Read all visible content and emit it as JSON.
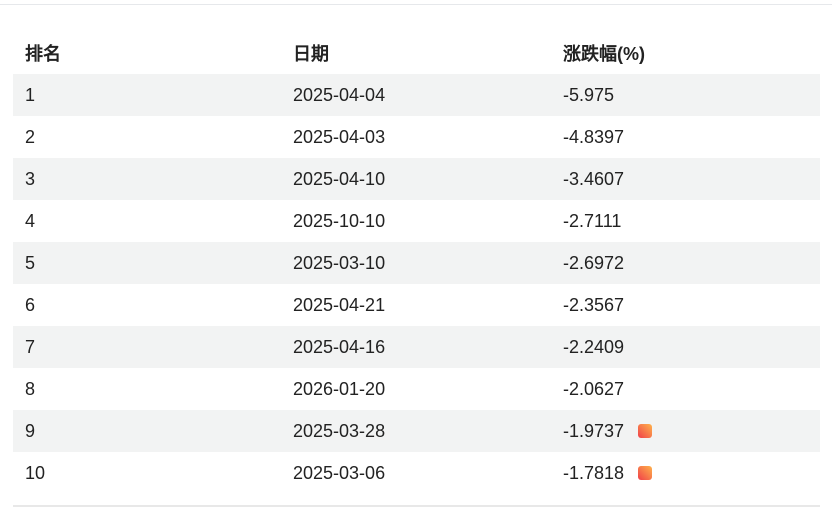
{
  "table": {
    "headers": [
      "排名",
      "日期",
      "涨跌幅(%)"
    ],
    "rows": [
      {
        "rank": "1",
        "date": "2025-04-04",
        "change": "-5.975",
        "icon": false
      },
      {
        "rank": "2",
        "date": "2025-04-03",
        "change": "-4.8397",
        "icon": false
      },
      {
        "rank": "3",
        "date": "2025-04-10",
        "change": "-3.4607",
        "icon": false
      },
      {
        "rank": "4",
        "date": "2025-10-10",
        "change": "-2.7111",
        "icon": false
      },
      {
        "rank": "5",
        "date": "2025-03-10",
        "change": "-2.6972",
        "icon": false
      },
      {
        "rank": "6",
        "date": "2025-04-21",
        "change": "-2.3567",
        "icon": false
      },
      {
        "rank": "7",
        "date": "2025-04-16",
        "change": "-2.2409",
        "icon": false
      },
      {
        "rank": "8",
        "date": "2026-01-20",
        "change": "-2.0627",
        "icon": false
      },
      {
        "rank": "9",
        "date": "2025-03-28",
        "change": "-1.9737",
        "icon": true
      },
      {
        "rank": "10",
        "date": "2025-03-06",
        "change": "-1.7818",
        "icon": true
      }
    ]
  },
  "colors": {
    "stripe": "#f2f3f3",
    "badge_from": "#f0404a",
    "badge_to": "#ffb34a"
  }
}
